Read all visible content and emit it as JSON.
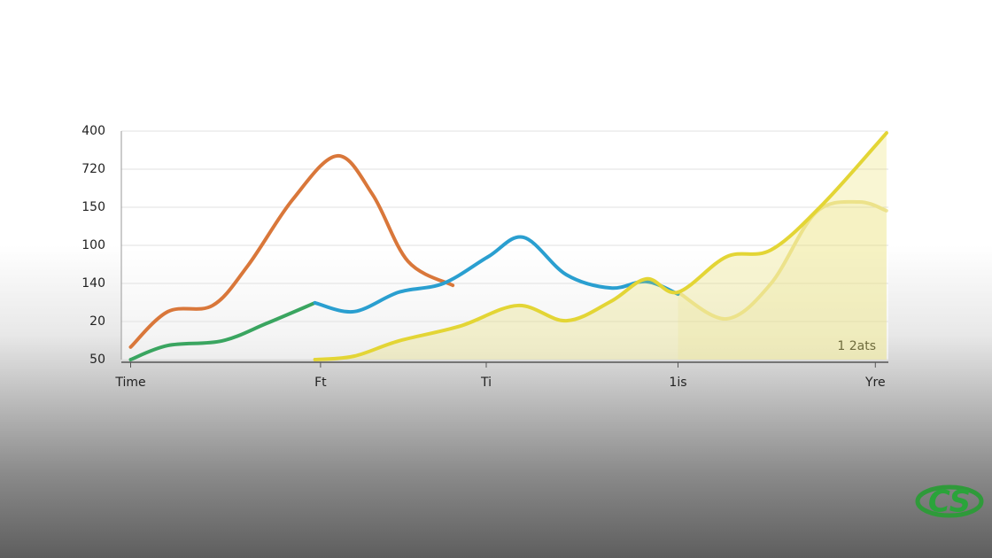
{
  "chart_data": {
    "type": "line",
    "xlim": [
      -0.05,
      4.07
    ],
    "xticks": [
      {
        "value": 0,
        "label": "Time"
      },
      {
        "value": 1.02,
        "label": "Ft"
      },
      {
        "value": 1.91,
        "label": "Ti"
      },
      {
        "value": 2.94,
        "label": "1is"
      },
      {
        "value": 4,
        "label": "Yre"
      }
    ],
    "ylim": [
      0,
      6
    ],
    "yticks": [
      {
        "value": 0,
        "label": "50"
      },
      {
        "value": 1,
        "label": "20"
      },
      {
        "value": 2,
        "label": "140"
      },
      {
        "value": 3,
        "label": "100"
      },
      {
        "value": 4,
        "label": "150"
      },
      {
        "value": 5,
        "label": "720"
      },
      {
        "value": 6,
        "label": "400"
      }
    ],
    "grid": true,
    "annotation": "1 2ats",
    "logo": "CS",
    "series": [
      {
        "color": "#efe6a2",
        "area": true,
        "x": [
          2.94,
          3.2,
          3.44,
          3.68,
          3.91,
          4.06
        ],
        "values": [
          1.77,
          1.07,
          2.0,
          3.86,
          4.14,
          3.91
        ]
      },
      {
        "color": "#d9773a",
        "x": [
          0,
          0.2,
          0.44,
          0.63,
          0.87,
          1.11,
          1.3,
          1.49,
          1.73
        ],
        "values": [
          0.33,
          1.26,
          1.42,
          2.47,
          4.2,
          5.35,
          4.33,
          2.58,
          1.95
        ]
      },
      {
        "color": "#3aa560",
        "x": [
          0,
          0.2,
          0.49,
          0.73,
          0.99
        ],
        "values": [
          0,
          0.37,
          0.49,
          0.95,
          1.49
        ]
      },
      {
        "color": "#2a9fd0",
        "x": [
          0.99,
          1.2,
          1.44,
          1.68,
          1.92,
          2.11,
          2.34,
          2.58,
          2.77,
          2.94
        ],
        "values": [
          1.49,
          1.26,
          1.77,
          2.0,
          2.7,
          3.21,
          2.23,
          1.88,
          2.05,
          1.72
        ]
      },
      {
        "color": "#e3d535",
        "area": true,
        "x": [
          0.99,
          1.2,
          1.44,
          1.77,
          2.08,
          2.34,
          2.58,
          2.77,
          2.94,
          3.2,
          3.44,
          3.72,
          4.06
        ],
        "values": [
          0,
          0.09,
          0.49,
          0.88,
          1.42,
          1.02,
          1.53,
          2.12,
          1.77,
          2.7,
          2.88,
          4.09,
          5.95
        ]
      }
    ]
  }
}
